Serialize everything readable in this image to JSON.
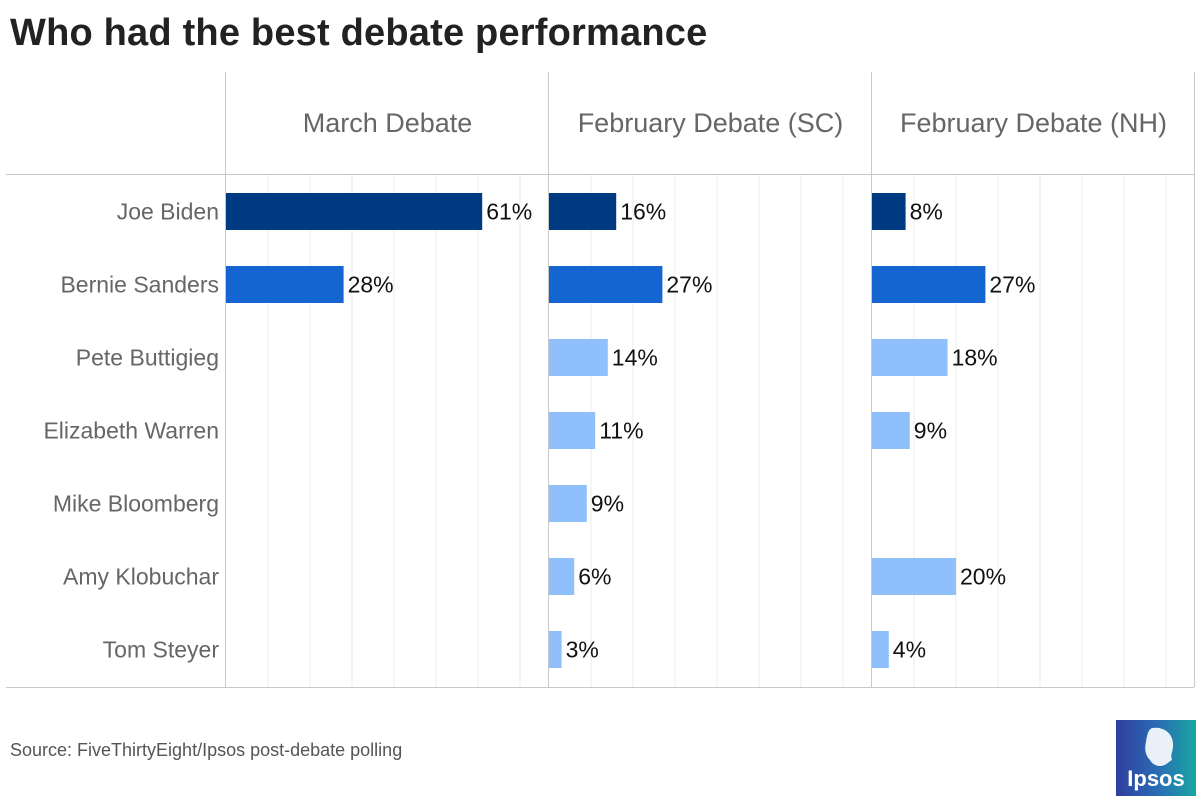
{
  "title": "Who had the best debate performance",
  "source": "Source: FiveThirtyEight/Ipsos post-debate polling",
  "logo_text": "Ipsos",
  "chart_data": {
    "type": "bar",
    "orientation": "horizontal",
    "title": "Who had the best debate performance",
    "categories": [
      "Joe Biden",
      "Bernie Sanders",
      "Pete Buttigieg",
      "Elizabeth Warren",
      "Mike Bloomberg",
      "Amy Klobuchar",
      "Tom Steyer"
    ],
    "panels": [
      {
        "name": "March Debate",
        "values": [
          61,
          28,
          null,
          null,
          null,
          null,
          null
        ],
        "labels": [
          "61%",
          "28%",
          "",
          "",
          "",
          "",
          ""
        ]
      },
      {
        "name": "February Debate (SC)",
        "values": [
          16,
          27,
          14,
          11,
          9,
          6,
          3
        ],
        "labels": [
          "16%",
          "27%",
          "14%",
          "11%",
          "9%",
          "6%",
          "3%"
        ]
      },
      {
        "name": "February Debate (NH)",
        "values": [
          8,
          27,
          18,
          9,
          null,
          20,
          4
        ],
        "labels": [
          "8%",
          "27%",
          "18%",
          "9%",
          "",
          "20%",
          "4%"
        ]
      }
    ],
    "xlim": [
      0,
      80
    ],
    "grid": true,
    "colors": {
      "Joe Biden": "#003a80",
      "Bernie Sanders": "#1464d2",
      "other": "#8fc0fb"
    }
  }
}
